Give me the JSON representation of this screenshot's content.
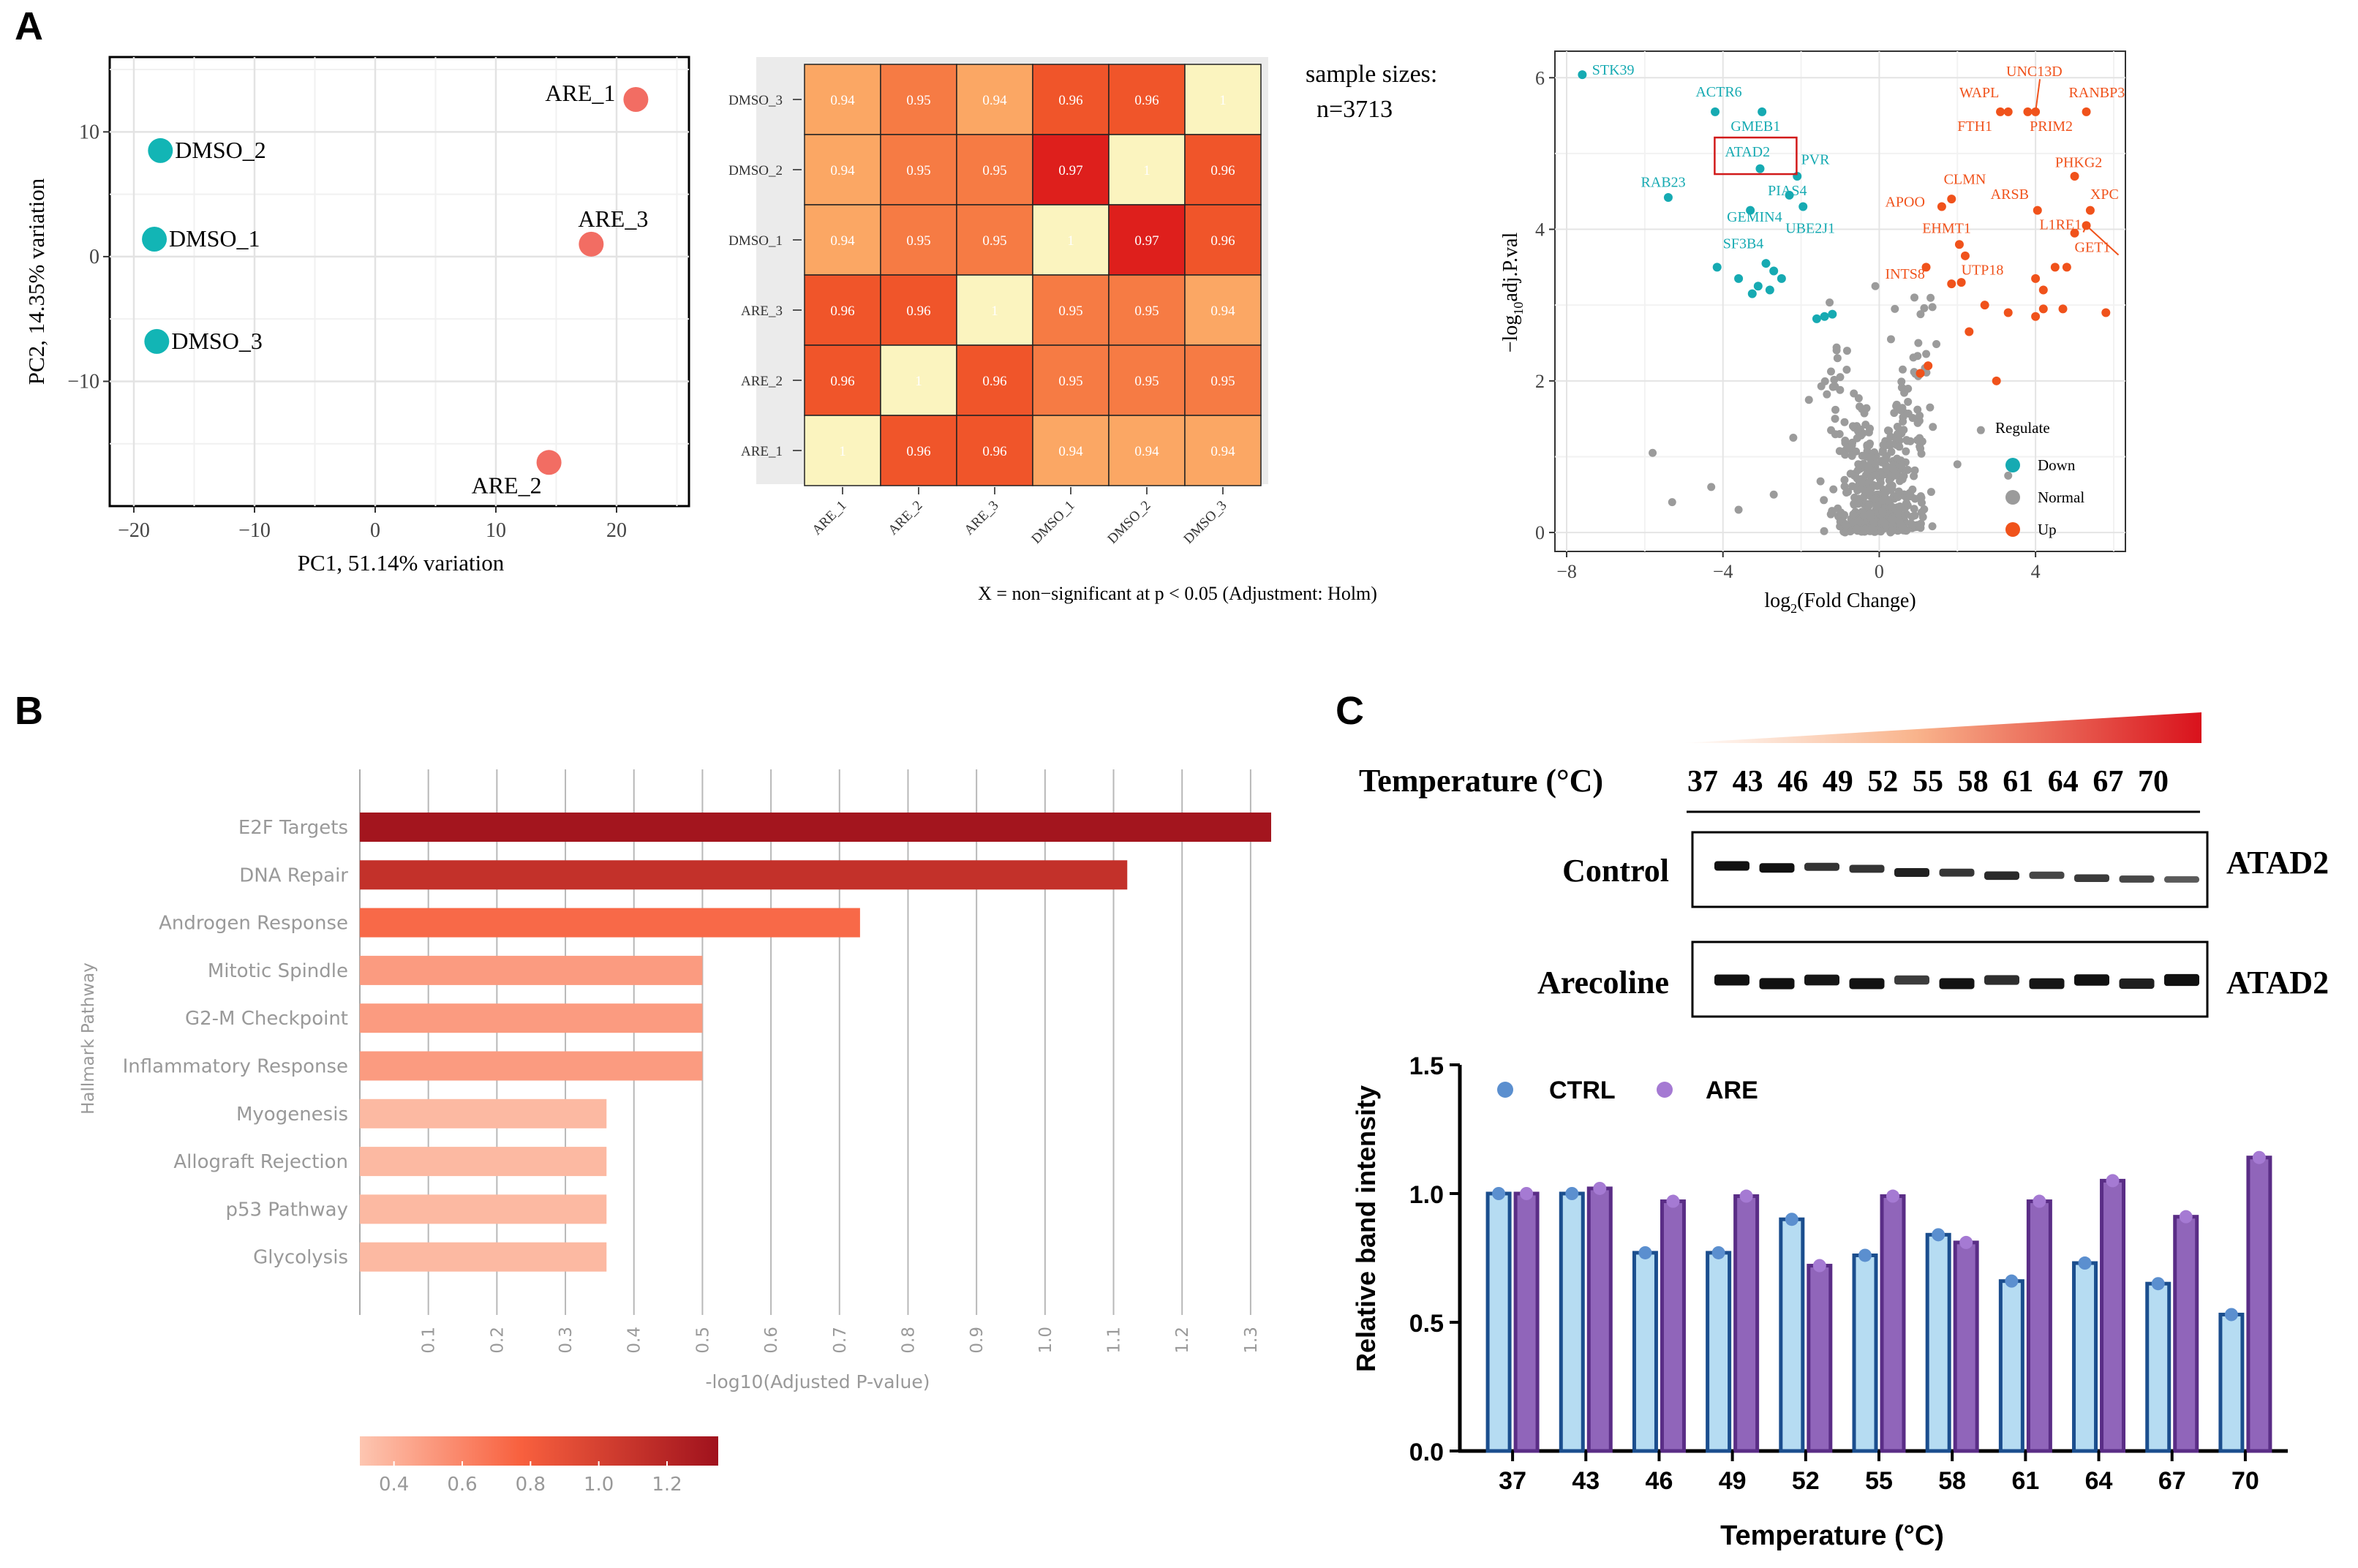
{
  "panel_labels": {
    "a": "A",
    "b": "B",
    "c": "C"
  },
  "colors": {
    "teal": "#12b5b5",
    "pink": "#f26d63",
    "volcano_up": "#f0521b",
    "volcano_down": "#16aab2",
    "volcano_normal": "#9b9b9b",
    "blue_bar": "#b6dcf2",
    "blue_edge": "#1b4e8e",
    "purple_bar": "#9065ba",
    "purple_edge": "#5a2d86"
  },
  "chart_data": [
    {
      "id": "pca",
      "type": "scatter",
      "xlabel": "PC1, 51.14% variation",
      "ylabel": "PC2, 14.35% variation",
      "xlim": [
        -22,
        26
      ],
      "ylim": [
        -20,
        16
      ],
      "xticks": [
        -20,
        -10,
        0,
        10,
        20
      ],
      "xtick_labels": [
        "−20",
        "−10",
        "0",
        "10",
        "20"
      ],
      "yticks": [
        -10,
        0,
        10
      ],
      "ytick_labels": [
        "−10",
        "0",
        "10"
      ],
      "points": [
        {
          "label": "DMSO_2",
          "x": -17.8,
          "y": 8.5,
          "group": "DMSO"
        },
        {
          "label": "DMSO_1",
          "x": -18.3,
          "y": 1.4,
          "group": "DMSO"
        },
        {
          "label": "DMSO_3",
          "x": -18.1,
          "y": -6.8,
          "group": "DMSO"
        },
        {
          "label": "ARE_1",
          "x": 21.6,
          "y": 12.6,
          "group": "ARE"
        },
        {
          "label": "ARE_3",
          "x": 17.9,
          "y": 1.0,
          "group": "ARE"
        },
        {
          "label": "ARE_2",
          "x": 14.4,
          "y": -16.5,
          "group": "ARE"
        }
      ]
    },
    {
      "id": "correlation",
      "type": "heatmap",
      "rows": [
        "DMSO_3",
        "DMSO_2",
        "DMSO_1",
        "ARE_3",
        "ARE_2",
        "ARE_1"
      ],
      "cols": [
        "ARE_1",
        "ARE_2",
        "ARE_3",
        "DMSO_1",
        "DMSO_2",
        "DMSO_3"
      ],
      "values": [
        [
          0.94,
          0.95,
          0.94,
          0.96,
          0.96,
          1
        ],
        [
          0.94,
          0.95,
          0.95,
          0.97,
          1,
          0.96
        ],
        [
          0.94,
          0.95,
          0.95,
          1,
          0.97,
          0.96
        ],
        [
          0.96,
          0.96,
          1,
          0.95,
          0.95,
          0.94
        ],
        [
          0.96,
          1,
          0.96,
          0.95,
          0.95,
          0.95
        ],
        [
          1,
          0.96,
          0.96,
          0.94,
          0.94,
          0.94
        ]
      ],
      "labels": [
        [
          "0.94",
          "0.95",
          "0.94",
          "0.96",
          "0.96",
          "1"
        ],
        [
          "0.94",
          "0.95",
          "0.95",
          "0.97",
          "1",
          "0.96"
        ],
        [
          "0.94",
          "0.95",
          "0.95",
          "1",
          "0.97",
          "0.96"
        ],
        [
          "0.96",
          "0.96",
          "1",
          "0.95",
          "0.95",
          "0.94"
        ],
        [
          "0.96",
          "1",
          "0.96",
          "0.95",
          "0.95",
          "0.95"
        ],
        [
          "1",
          "0.96",
          "0.96",
          "0.94",
          "0.94",
          "0.94"
        ]
      ],
      "sample_sizes_label": "sample sizes:",
      "n_label": "n=3713",
      "footnote": "X = non−significant at p < 0.05 (Adjustment: Holm)"
    },
    {
      "id": "volcano",
      "type": "scatter",
      "xlabel_prefix": "log",
      "xlabel_sub": "2",
      "xlabel_suffix": "(Fold Change)",
      "ylabel_prefix": "−log",
      "ylabel_sub": "10",
      "ylabel_suffix": "adj.P.val",
      "xlim": [
        -8.3,
        6.3
      ],
      "ylim": [
        -0.25,
        6.35
      ],
      "xticks": [
        -8,
        -4,
        0,
        4
      ],
      "xtick_labels": [
        "−8",
        "−4",
        "0",
        "4"
      ],
      "yticks": [
        0,
        2,
        4,
        6
      ],
      "ytick_labels": [
        "0",
        "2",
        "4",
        "6"
      ],
      "legend_title": "Regulate",
      "legend": [
        "Down",
        "Normal",
        "Up"
      ],
      "highlight": "ATAD2",
      "down_points": [
        [
          -7.6,
          6.04
        ],
        [
          -4.2,
          5.55
        ],
        [
          -3.0,
          5.55
        ],
        [
          -2.1,
          4.7
        ],
        [
          -3.05,
          4.8
        ],
        [
          -5.4,
          4.42
        ],
        [
          -2.3,
          4.45
        ],
        [
          -1.95,
          4.3
        ],
        [
          -3.3,
          4.25
        ],
        [
          -4.15,
          3.5
        ],
        [
          -3.6,
          3.35
        ],
        [
          -3.1,
          3.25
        ],
        [
          -2.9,
          3.55
        ],
        [
          -2.7,
          3.45
        ],
        [
          -2.5,
          3.35
        ],
        [
          -2.8,
          3.2
        ],
        [
          -3.25,
          3.15
        ],
        [
          -1.4,
          2.85
        ],
        [
          -1.2,
          2.88
        ],
        [
          -1.6,
          2.82
        ]
      ],
      "up_points": [
        [
          3.8,
          5.55
        ],
        [
          3.3,
          5.55
        ],
        [
          3.1,
          5.55
        ],
        [
          4.0,
          5.55
        ],
        [
          5.3,
          5.55
        ],
        [
          5.0,
          4.7
        ],
        [
          1.85,
          4.4
        ],
        [
          1.6,
          4.3
        ],
        [
          4.05,
          4.25
        ],
        [
          5.4,
          4.25
        ],
        [
          5.3,
          4.05
        ],
        [
          5.0,
          3.95
        ],
        [
          2.05,
          3.8
        ],
        [
          2.2,
          3.65
        ],
        [
          1.2,
          3.5
        ],
        [
          2.1,
          3.3
        ],
        [
          1.85,
          3.28
        ],
        [
          4.0,
          3.35
        ],
        [
          4.2,
          3.2
        ],
        [
          4.5,
          3.5
        ],
        [
          4.8,
          3.5
        ],
        [
          4.2,
          2.95
        ],
        [
          4.7,
          2.95
        ],
        [
          5.8,
          2.9
        ],
        [
          3.3,
          2.9
        ],
        [
          2.3,
          2.65
        ],
        [
          1.25,
          2.2
        ],
        [
          1.05,
          2.1
        ],
        [
          3.0,
          2.0
        ],
        [
          2.7,
          3.0
        ],
        [
          4.0,
          2.85
        ]
      ],
      "up_labels": [
        {
          "text": "UNC13D",
          "x": 3.25,
          "y": 6.02,
          "px": 4.0,
          "py": 5.55
        },
        {
          "text": "WAPL",
          "x": 2.05,
          "y": 5.74
        },
        {
          "text": "RANBP3",
          "x": 4.85,
          "y": 5.74
        },
        {
          "text": "FTH1",
          "x": 2.0,
          "y": 5.3
        },
        {
          "text": "PRIM2",
          "x": 3.85,
          "y": 5.3
        },
        {
          "text": "PHKG2",
          "x": 4.5,
          "y": 4.82
        },
        {
          "text": "CLMN",
          "x": 1.65,
          "y": 4.6
        },
        {
          "text": "APOO",
          "x": 0.15,
          "y": 4.3
        },
        {
          "text": "ARSB",
          "x": 2.85,
          "y": 4.4
        },
        {
          "text": "XPC",
          "x": 5.4,
          "y": 4.4
        },
        {
          "text": "L1RE1",
          "x": 4.1,
          "y": 4.0,
          "px": 5.3,
          "py": 4.05
        },
        {
          "text": "EHMT1",
          "x": 1.1,
          "y": 3.95
        },
        {
          "text": "GET1",
          "x": 5.0,
          "y": 3.7,
          "px": 5.3,
          "py": 4.05
        },
        {
          "text": "UTP18",
          "x": 2.1,
          "y": 3.4
        },
        {
          "text": "INTS8",
          "x": 0.15,
          "y": 3.35
        }
      ],
      "down_labels": [
        {
          "text": "STK39",
          "x": -7.35,
          "y": 6.04
        },
        {
          "text": "ACTR6",
          "x": -4.7,
          "y": 5.75
        },
        {
          "text": "GMEB1",
          "x": -3.8,
          "y": 5.3
        },
        {
          "text": "ATAD2",
          "x": -3.95,
          "y": 4.96
        },
        {
          "text": "PVR",
          "x": -2.0,
          "y": 4.86
        },
        {
          "text": "RAB23",
          "x": -6.1,
          "y": 4.56
        },
        {
          "text": "PIAS4",
          "x": -2.85,
          "y": 4.45
        },
        {
          "text": "GEMIN4",
          "x": -3.9,
          "y": 4.1
        },
        {
          "text": "UBE2J1",
          "x": -2.4,
          "y": 3.95
        },
        {
          "text": "SF3B4",
          "x": -4.0,
          "y": 3.75
        }
      ]
    },
    {
      "id": "hallmark",
      "type": "bar",
      "orientation": "horizontal",
      "ylabel": "Hallmark Pathway",
      "xlabel": "-log10(Adjusted P-value)",
      "xlim": [
        0,
        1.33
      ],
      "xticks": [
        0.1,
        0.2,
        0.3,
        0.4,
        0.5,
        0.6,
        0.7,
        0.8,
        0.9,
        1.0,
        1.1,
        1.2,
        1.3
      ],
      "xtick_labels": [
        "0.1",
        "0.2",
        "0.3",
        "0.4",
        "0.5",
        "0.6",
        "0.7",
        "0.8",
        "0.9",
        "1.0",
        "1.1",
        "1.2",
        "1.3"
      ],
      "categories": [
        "E2F Targets",
        "DNA Repair",
        "Androgen Response",
        "Mitotic Spindle",
        "G2-M Checkpoint",
        "Inflammatory Response",
        "Myogenesis",
        "Allograft Rejection",
        "p53 Pathway",
        "Glycolysis"
      ],
      "values": [
        1.33,
        1.12,
        0.73,
        0.5,
        0.5,
        0.5,
        0.36,
        0.36,
        0.36,
        0.36
      ],
      "colorbar_ticks": [
        "0.4",
        "0.6",
        "0.8",
        "1.0",
        "1.2"
      ],
      "colorbar_range": [
        0.3,
        1.35
      ]
    },
    {
      "id": "band_intensity",
      "type": "bar",
      "xlabel": "Temperature (°C)",
      "ylabel": "Relative band intensity",
      "ylim": [
        0,
        1.5
      ],
      "yticks": [
        0,
        0.5,
        1.0,
        1.5
      ],
      "ytick_labels": [
        "0.0",
        "0.5",
        "1.0",
        "1.5"
      ],
      "categories": [
        "37",
        "43",
        "46",
        "49",
        "52",
        "55",
        "58",
        "61",
        "64",
        "67",
        "70"
      ],
      "series": [
        {
          "name": "CTRL",
          "values": [
            1.0,
            1.0,
            0.77,
            0.77,
            0.9,
            0.76,
            0.84,
            0.66,
            0.73,
            0.65,
            0.53
          ]
        },
        {
          "name": "ARE",
          "values": [
            1.0,
            1.02,
            0.97,
            0.99,
            0.72,
            0.99,
            0.81,
            0.97,
            1.05,
            0.91,
            1.14
          ]
        }
      ]
    }
  ],
  "cetsa": {
    "temperature_label": "Temperature (°C)",
    "temperatures": [
      "37",
      "43",
      "46",
      "49",
      "52",
      "55",
      "58",
      "61",
      "64",
      "67",
      "70"
    ],
    "rows": [
      {
        "name": "Control",
        "protein": "ATAD2",
        "intensities": [
          1.0,
          1.0,
          0.77,
          0.77,
          0.9,
          0.76,
          0.84,
          0.66,
          0.73,
          0.65,
          0.53
        ]
      },
      {
        "name": "Arecoline",
        "protein": "ATAD2",
        "intensities": [
          1.0,
          1.02,
          0.97,
          0.99,
          0.72,
          0.99,
          0.81,
          0.97,
          1.05,
          0.91,
          1.14
        ]
      }
    ]
  }
}
